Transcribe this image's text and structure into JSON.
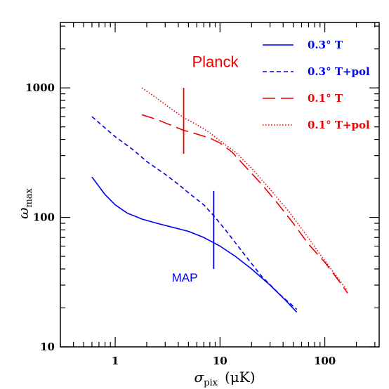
{
  "chart_data": {
    "type": "line",
    "xscale": "log",
    "yscale": "log",
    "xlim": [
      0.3,
      330
    ],
    "ylim": [
      10,
      3200
    ],
    "xlabel": {
      "symbol": "σ",
      "sub": "pix",
      "unit": "(μK)"
    },
    "ylabel": {
      "symbol": "ω",
      "sub": "max"
    },
    "xticks": [
      {
        "value": 1,
        "label": "1"
      },
      {
        "value": 10,
        "label": "10"
      },
      {
        "value": 100,
        "label": "100"
      }
    ],
    "yticks": [
      {
        "value": 10,
        "label": "10"
      },
      {
        "value": 100,
        "label": "100"
      },
      {
        "value": 1000,
        "label": "1000"
      }
    ],
    "series": [
      {
        "name": "0.3° T",
        "color": "#0000ee",
        "dash": "solid",
        "points": [
          [
            0.6,
            205
          ],
          [
            0.8,
            150
          ],
          [
            1.0,
            125
          ],
          [
            1.3,
            108
          ],
          [
            1.8,
            97
          ],
          [
            2.5,
            90
          ],
          [
            3.5,
            84
          ],
          [
            5.0,
            78
          ],
          [
            7.0,
            70
          ],
          [
            10.0,
            60
          ],
          [
            14.0,
            50
          ],
          [
            20.0,
            40
          ],
          [
            30.0,
            30
          ],
          [
            42.0,
            23
          ],
          [
            54.0,
            18.5
          ]
        ]
      },
      {
        "name": "0.3° T+pol",
        "color": "#0000ee",
        "dash": "short",
        "points": [
          [
            0.6,
            600
          ],
          [
            0.8,
            490
          ],
          [
            1.0,
            420
          ],
          [
            1.5,
            330
          ],
          [
            2.0,
            270
          ],
          [
            3.0,
            215
          ],
          [
            4.0,
            180
          ],
          [
            5.0,
            155
          ],
          [
            7.0,
            125
          ],
          [
            9.0,
            100
          ],
          [
            12.0,
            75
          ],
          [
            17.0,
            52
          ],
          [
            25.0,
            35
          ],
          [
            38.0,
            25
          ],
          [
            54.0,
            19.5
          ]
        ]
      },
      {
        "name": "0.1° T",
        "color": "#ee0000",
        "dash": "long",
        "points": [
          [
            1.8,
            620
          ],
          [
            2.5,
            570
          ],
          [
            3.5,
            510
          ],
          [
            4.5,
            470
          ],
          [
            6.0,
            440
          ],
          [
            8.0,
            410
          ],
          [
            10.0,
            375
          ],
          [
            13.0,
            320
          ],
          [
            18.0,
            240
          ],
          [
            25.0,
            180
          ],
          [
            35.0,
            130
          ],
          [
            50.0,
            90
          ],
          [
            70.0,
            62
          ],
          [
            100.0,
            45
          ],
          [
            130.0,
            34
          ],
          [
            165.0,
            26
          ]
        ]
      },
      {
        "name": "0.1° T+pol",
        "color": "#ee0000",
        "dash": "dotted",
        "points": [
          [
            1.8,
            1000
          ],
          [
            2.5,
            830
          ],
          [
            3.5,
            680
          ],
          [
            4.5,
            590
          ],
          [
            6.0,
            520
          ],
          [
            8.0,
            450
          ],
          [
            10.0,
            390
          ],
          [
            14.0,
            320
          ],
          [
            20.0,
            240
          ],
          [
            30.0,
            165
          ],
          [
            45.0,
            112
          ],
          [
            65.0,
            75
          ],
          [
            90.0,
            52
          ],
          [
            120.0,
            38
          ],
          [
            165.0,
            27
          ]
        ]
      }
    ],
    "annotations": [
      {
        "text": "Planck",
        "color": "#ee0000",
        "x": 9.0,
        "y": 1450
      },
      {
        "text": "MAP",
        "color": "#0000ee",
        "x": 4.6,
        "y": 32
      }
    ],
    "marker_lines": [
      {
        "color": "#ee0000",
        "x": 4.5,
        "y1": 310,
        "y2": 1000
      },
      {
        "color": "#0000ee",
        "x": 8.7,
        "y1": 40,
        "y2": 160
      }
    ],
    "legend": {
      "position": "top-right",
      "entries": [
        {
          "label": "0.3° T",
          "color": "#0000ee",
          "dash": "solid"
        },
        {
          "label": "0.3° T+pol",
          "color": "#0000ee",
          "dash": "short"
        },
        {
          "label": "0.1° T",
          "color": "#ee0000",
          "dash": "long"
        },
        {
          "label": "0.1° T+pol",
          "color": "#ee0000",
          "dash": "dotted"
        }
      ]
    }
  }
}
